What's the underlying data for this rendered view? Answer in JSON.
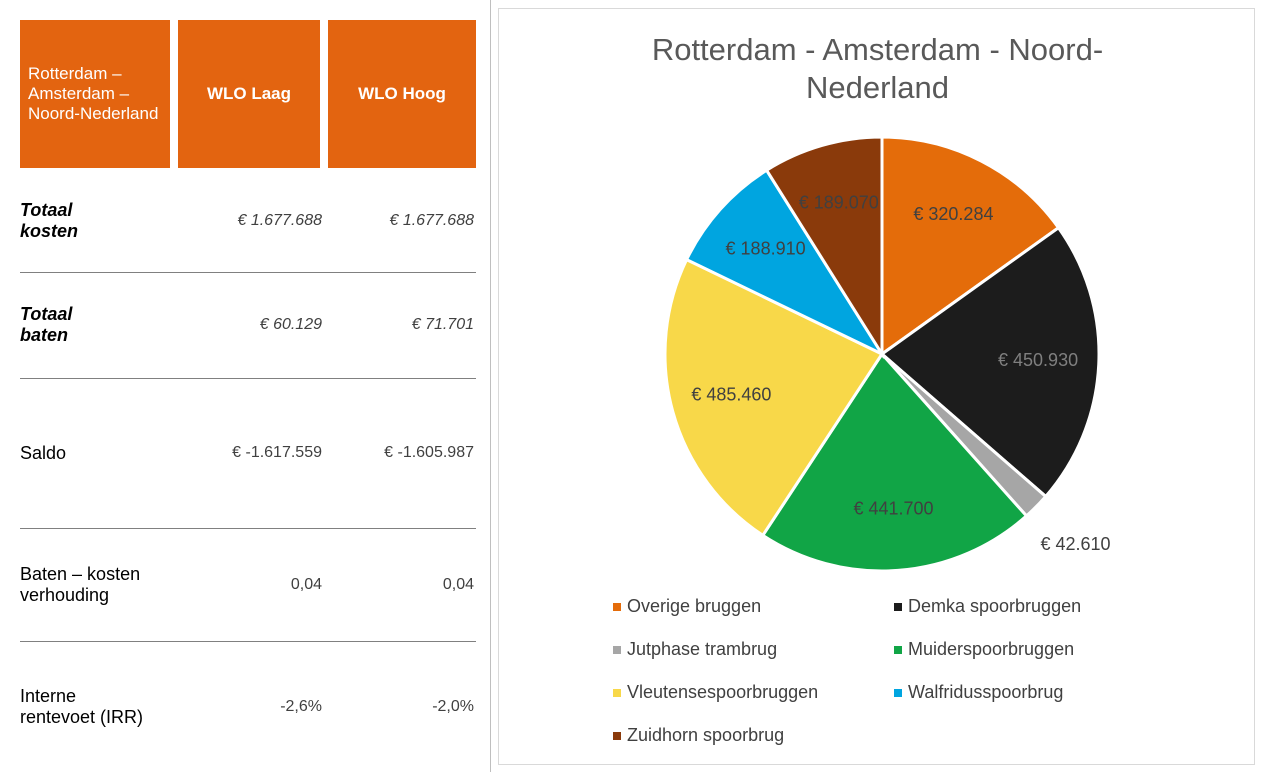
{
  "table": {
    "header": [
      "Rotterdam – Amsterdam – Noord-Nederland",
      "WLO Laag",
      "WLO Hoog"
    ],
    "rows": [
      [
        "Totaal kosten",
        "€ 1.677.688",
        "€ 1.677.688"
      ],
      [
        "Totaal baten",
        "€ 60.129",
        "€ 71.701"
      ],
      [
        "Saldo",
        "€ -1.617.559",
        "€ -1.605.987"
      ],
      [
        "Baten – kosten verhouding",
        "0,04",
        "0,04"
      ],
      [
        "Interne rentevoet (IRR)",
        "-2,6%",
        "-2,0%"
      ]
    ]
  },
  "chart_data": {
    "type": "pie",
    "title": "Rotterdam - Amsterdam - Noord-Nederland",
    "categories": [
      "Overige bruggen",
      "Demka spoorbruggen",
      "Jutphase trambrug",
      "Muiderspoorbruggen",
      "Vleutensespoorbruggen",
      "Walfridusspoorbrug",
      "Zuidhorn spoorbrug"
    ],
    "values": [
      320284,
      450930,
      42610,
      441700,
      485460,
      188910,
      189070
    ],
    "value_labels": [
      "€ 320.284",
      "€ 450.930",
      "€ 42.610",
      "€ 441.700",
      "€ 485.460",
      "€ 188.910",
      "€ 189.070"
    ],
    "colors": [
      "#e46c0a",
      "#1c1c1c",
      "#a6a6a6",
      "#11a546",
      "#f8d849",
      "#00a5e0",
      "#8a3a0b"
    ],
    "legend": "bottom"
  }
}
